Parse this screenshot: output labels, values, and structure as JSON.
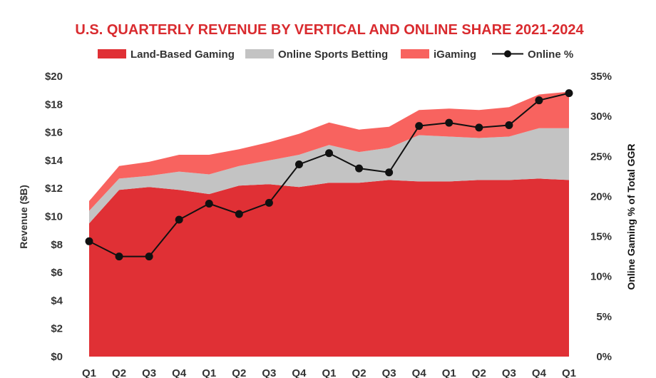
{
  "chart_data": {
    "type": "area",
    "title": "U.S. QUARTERLY REVENUE BY VERTICAL AND ONLINE SHARE 2021-2024",
    "ylabel": "Revenue ($B)",
    "y2label": "Online Gaming % of Total GGR",
    "categories": [
      "Q1",
      "Q2",
      "Q3",
      "Q4",
      "Q1",
      "Q2",
      "Q3",
      "Q4",
      "Q1",
      "Q2",
      "Q3",
      "Q4",
      "Q1",
      "Q2",
      "Q3",
      "Q4",
      "Q1"
    ],
    "yticks": [
      "$0",
      "$2",
      "$4",
      "$6",
      "$8",
      "$10",
      "$12",
      "$14",
      "$16",
      "$18",
      "$20"
    ],
    "y2ticks": [
      "0%",
      "5%",
      "10%",
      "15%",
      "20%",
      "25%",
      "30%",
      "35%"
    ],
    "ylim": [
      0,
      20
    ],
    "y2lim": [
      0,
      35
    ],
    "stacked": true,
    "series": [
      {
        "name": "Land-Based Gaming",
        "kind": "area",
        "axis": "left",
        "color": "#e03035",
        "values": [
          9.5,
          11.9,
          12.1,
          11.9,
          11.6,
          12.2,
          12.3,
          12.1,
          12.4,
          12.4,
          12.6,
          12.5,
          12.5,
          12.6,
          12.6,
          12.7,
          12.6
        ]
      },
      {
        "name": "Online Sports Betting",
        "kind": "area",
        "axis": "left",
        "color": "#c3c3c3",
        "values": [
          0.9,
          0.8,
          0.8,
          1.3,
          1.4,
          1.4,
          1.7,
          2.3,
          2.7,
          2.2,
          2.3,
          3.3,
          3.2,
          3.0,
          3.1,
          3.6,
          3.7
        ]
      },
      {
        "name": "iGaming",
        "kind": "area",
        "axis": "left",
        "color": "#f8635f",
        "values": [
          0.7,
          0.9,
          1.0,
          1.2,
          1.4,
          1.2,
          1.3,
          1.5,
          1.6,
          1.6,
          1.5,
          1.8,
          2.0,
          2.0,
          2.1,
          2.4,
          2.6
        ]
      },
      {
        "name": "Online %",
        "kind": "line",
        "axis": "right",
        "color": "#111111",
        "values": [
          14.4,
          12.5,
          12.5,
          17.1,
          19.1,
          17.8,
          19.2,
          24.0,
          25.4,
          23.5,
          23.0,
          28.8,
          29.2,
          28.6,
          28.9,
          32.0,
          32.9
        ]
      }
    ],
    "grid": false,
    "legend": "top"
  }
}
